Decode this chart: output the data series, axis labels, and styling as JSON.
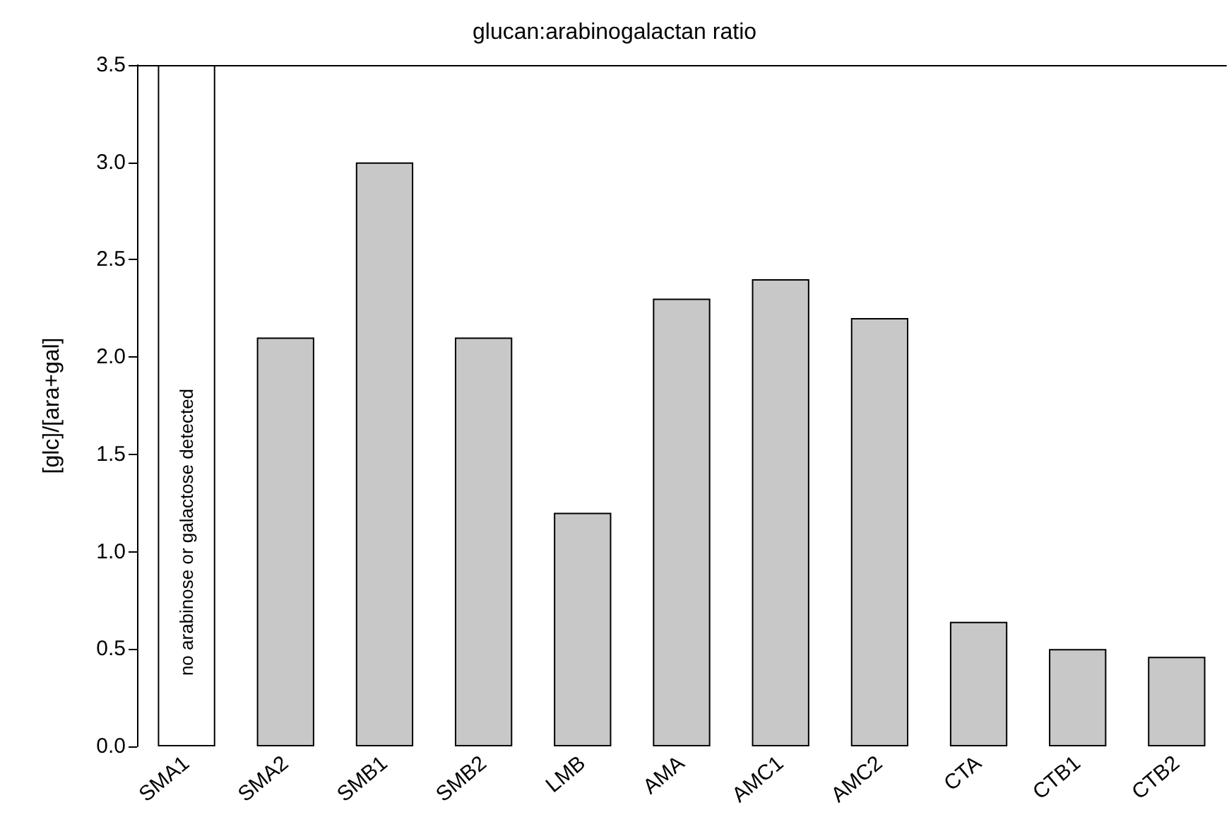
{
  "chart_data": {
    "type": "bar",
    "title": "glucan:arabinogalactan ratio",
    "ylabel": "[glc]/[ara+gal]",
    "categories": [
      "SMA1",
      "SMA2",
      "SMB1",
      "SMB2",
      "LMB",
      "AMA",
      "AMC1",
      "AMC2",
      "CTA",
      "CTB1",
      "CTB2"
    ],
    "values": [
      3.5,
      2.1,
      3.0,
      2.1,
      1.2,
      2.3,
      2.4,
      2.2,
      0.64,
      0.5,
      0.46
    ],
    "colors": [
      "#ffffff",
      "#c8c8c8",
      "#c8c8c8",
      "#c8c8c8",
      "#c8c8c8",
      "#c8c8c8",
      "#c8c8c8",
      "#c8c8c8",
      "#c8c8c8",
      "#c8c8c8",
      "#c8c8c8"
    ],
    "ylim": [
      0,
      3.5
    ],
    "yticks": [
      {
        "value": 0,
        "label": "0.0"
      },
      {
        "value": 0.5,
        "label": "0.5"
      },
      {
        "value": 1,
        "label": "1.0"
      },
      {
        "value": 1.5,
        "label": "1.5"
      },
      {
        "value": 2,
        "label": "2.0"
      },
      {
        "value": 2.5,
        "label": "2.5"
      },
      {
        "value": 3,
        "label": "3.0"
      },
      {
        "value": 3.5,
        "label": "3.5"
      }
    ],
    "annotations": [
      {
        "text": "no arabinose or galactose detected",
        "x": "SMA1",
        "y": 1.1
      }
    ],
    "grid": false
  }
}
